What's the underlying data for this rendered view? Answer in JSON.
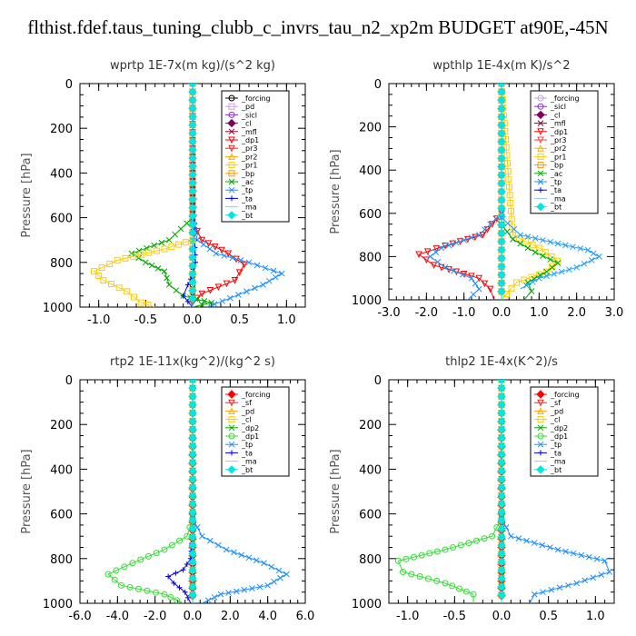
{
  "figure": {
    "title": "flthist.fdef.taus_tuning_clubb_c_invrs_tau_n2_xp2m  BUDGET at90E,-45N"
  },
  "chart_data": [
    {
      "type": "line",
      "title": "wprtp   1E-7x(m kg)/(s^2 kg)",
      "ylabel": "Pressure [hPa]",
      "xlim": [
        -1.2,
        1.2
      ],
      "ylim": [
        0,
        1000
      ],
      "y_inverted": true,
      "xticks": [
        -1.0,
        -0.5,
        0.0,
        0.5,
        1.0
      ],
      "xtick_labels": [
        "-1.0",
        "-0.5",
        "0.0",
        "0.5",
        "1.0"
      ],
      "yticks": [
        0,
        200,
        400,
        600,
        800,
        1000
      ],
      "legend_position": "top-right",
      "series": [
        {
          "name": "_forcing",
          "color": "#000000",
          "marker": "circle",
          "x": [
            0,
            0,
            0,
            0,
            0
          ],
          "y": [
            0,
            400,
            700,
            900,
            1000
          ]
        },
        {
          "name": "_pd",
          "color": "#c9a0dc",
          "marker": "square",
          "x": [
            0,
            0
          ],
          "y": [
            0,
            1000
          ]
        },
        {
          "name": "_sicl",
          "color": "#8a2be2",
          "marker": "circle",
          "x": [
            0,
            0
          ],
          "y": [
            0,
            1000
          ]
        },
        {
          "name": "_cl",
          "color": "#800060",
          "marker": "diamond",
          "x": [
            0,
            0
          ],
          "y": [
            0,
            1000
          ]
        },
        {
          "name": "_mfl",
          "color": "#990033",
          "marker": "cross",
          "x": [
            0,
            0
          ],
          "y": [
            0,
            1000
          ]
        },
        {
          "name": "_dp1",
          "color": "#ff0000",
          "marker": "triangle-down",
          "x": [
            0,
            0,
            0.1,
            0.38,
            0.55,
            0.45,
            0.1,
            0,
            0
          ],
          "y": [
            0,
            620,
            700,
            760,
            810,
            880,
            940,
            980,
            1000
          ]
        },
        {
          "name": "_pr3",
          "color": "#ff2020",
          "marker": "triangle-down",
          "x": [
            0,
            0
          ],
          "y": [
            0,
            1000
          ]
        },
        {
          "name": "_pr2",
          "color": "#ffaa00",
          "marker": "triangle",
          "x": [
            0,
            0
          ],
          "y": [
            0,
            1000
          ]
        },
        {
          "name": "_pr1",
          "color": "#ffcc00",
          "marker": "square",
          "x": [
            0,
            0
          ],
          "y": [
            0,
            1000
          ]
        },
        {
          "name": "_bp",
          "color": "#ff9900",
          "marker": "square",
          "x": [
            0,
            0
          ],
          "y": [
            0,
            1000
          ]
        },
        {
          "name": "_ac",
          "color": "#00aa00",
          "marker": "cross",
          "x": [
            0,
            -0.25,
            -0.65,
            -0.5,
            -0.3,
            -0.25,
            -0.1,
            0.2,
            0
          ],
          "y": [
            600,
            700,
            760,
            800,
            840,
            900,
            950,
            980,
            1000
          ]
        },
        {
          "name": "_tp",
          "color": "#1e90ff",
          "marker": "cross",
          "x": [
            0,
            0.05,
            0.25,
            0.6,
            0.95,
            0.75,
            0.4,
            0.15
          ],
          "y": [
            600,
            700,
            760,
            800,
            850,
            900,
            960,
            1000
          ]
        },
        {
          "name": "_ta",
          "color": "#0000ff",
          "marker": "plus",
          "x": [
            0,
            0.02,
            0.03,
            0.01,
            -0.05,
            -0.1,
            0
          ],
          "y": [
            0,
            700,
            800,
            850,
            900,
            950,
            1000
          ]
        },
        {
          "name": "_ma",
          "color": "#87cefa",
          "marker": "line",
          "x": [
            0,
            0
          ],
          "y": [
            0,
            1000
          ]
        },
        {
          "name": "_bt",
          "color": "#00e5e5",
          "marker": "diamond",
          "x": [
            0,
            0
          ],
          "y": [
            0,
            1000
          ]
        },
        {
          "name": "_sf",
          "color": "#ffcc00",
          "marker": "square",
          "x": [
            0,
            -0.3,
            -0.8,
            -1.05,
            -0.95,
            -0.7,
            -0.55,
            -0.4
          ],
          "y": [
            700,
            740,
            790,
            840,
            880,
            930,
            980,
            1000
          ]
        }
      ]
    },
    {
      "type": "line",
      "title": "wpthlp   1E-4x(m K)/s^2",
      "ylabel": "Pressure [hPa]",
      "xlim": [
        -3.0,
        3.0
      ],
      "ylim": [
        0,
        1000
      ],
      "y_inverted": true,
      "xticks": [
        -3.0,
        -2.0,
        -1.0,
        0.0,
        1.0,
        2.0,
        3.0
      ],
      "xtick_labels": [
        "-3.0",
        "-2.0",
        "-1.0",
        "0.0",
        "1.0",
        "2.0",
        "3.0"
      ],
      "yticks": [
        0,
        200,
        400,
        600,
        800,
        1000
      ],
      "legend_position": "top-right",
      "series": [
        {
          "name": "_forcing",
          "color": "#c9a0dc",
          "marker": "circle",
          "x": [
            0,
            0
          ],
          "y": [
            0,
            1000
          ]
        },
        {
          "name": "_sicl",
          "color": "#8a2be2",
          "marker": "circle",
          "x": [
            0,
            0
          ],
          "y": [
            0,
            1000
          ]
        },
        {
          "name": "_cl",
          "color": "#800060",
          "marker": "diamond",
          "x": [
            0,
            0
          ],
          "y": [
            0,
            1000
          ]
        },
        {
          "name": "_mfl",
          "color": "#990033",
          "marker": "cross",
          "x": [
            0,
            0
          ],
          "y": [
            0,
            1000
          ]
        },
        {
          "name": "_dp1",
          "color": "#ff0000",
          "marker": "triangle-down",
          "x": [
            0,
            -0.5,
            -1.5,
            -2.2,
            -1.8,
            -0.6,
            -0.3,
            -0.2
          ],
          "y": [
            600,
            700,
            750,
            790,
            840,
            900,
            950,
            1000
          ]
        },
        {
          "name": "_pr3",
          "color": "#ff4040",
          "marker": "triangle-down",
          "x": [
            0,
            0
          ],
          "y": [
            0,
            1000
          ]
        },
        {
          "name": "_pr2",
          "color": "#ffaa00",
          "marker": "triangle",
          "x": [
            0,
            0
          ],
          "y": [
            0,
            1000
          ]
        },
        {
          "name": "_pr1",
          "color": "#ffcc00",
          "marker": "square",
          "x": [
            0,
            0.3,
            1.0,
            1.5,
            1.2,
            0.4,
            0
          ],
          "y": [
            0,
            700,
            760,
            820,
            870,
            920,
            1000
          ]
        },
        {
          "name": "_bp",
          "color": "#ff9900",
          "marker": "square",
          "x": [
            0,
            0
          ],
          "y": [
            0,
            1000
          ]
        },
        {
          "name": "_ac",
          "color": "#00aa00",
          "marker": "cross",
          "x": [
            0,
            0.3,
            0.9,
            1.5,
            1.2,
            0.7,
            0.8,
            0.6
          ],
          "y": [
            650,
            720,
            780,
            830,
            870,
            920,
            960,
            1000
          ]
        },
        {
          "name": "_tp",
          "color": "#1e90ff",
          "marker": "cross",
          "x": [
            0,
            -0.6,
            -1.6,
            -1.9,
            -1.5,
            -0.8,
            -0.6,
            -0.9
          ],
          "y": [
            600,
            700,
            760,
            800,
            850,
            900,
            950,
            1000
          ]
        },
        {
          "name": "_ta",
          "color": "#0000ff",
          "marker": "plus",
          "x": [
            0,
            0
          ],
          "y": [
            0,
            1000
          ]
        },
        {
          "name": "_ma",
          "color": "#87cefa",
          "marker": "line",
          "x": [
            0,
            0
          ],
          "y": [
            0,
            1000
          ]
        },
        {
          "name": "_bt",
          "color": "#00e5e5",
          "marker": "diamond",
          "x": [
            0,
            0
          ],
          "y": [
            0,
            1000
          ]
        },
        {
          "name": "_sf",
          "color": "#1ea0ff",
          "marker": "cross",
          "x": [
            0,
            0.5,
            1.5,
            2.3,
            2.6,
            2.0,
            1.0,
            0.5
          ],
          "y": [
            620,
            700,
            740,
            770,
            800,
            850,
            900,
            950
          ]
        }
      ]
    },
    {
      "type": "line",
      "title": "rtp2   1E-11x(kg^2)/(kg^2 s)",
      "ylabel": "Pressure [hPa]",
      "xlim": [
        -6.0,
        6.0
      ],
      "ylim": [
        0,
        1000
      ],
      "y_inverted": true,
      "xticks": [
        -6.0,
        -4.0,
        -2.0,
        0.0,
        2.0,
        4.0,
        6.0
      ],
      "xtick_labels": [
        "-6.0",
        "-4.0",
        "-2.0",
        "0.0",
        "2.0",
        "4.0",
        "6.0"
      ],
      "yticks": [
        0,
        200,
        400,
        600,
        800,
        1000
      ],
      "legend_position": "top-right",
      "series": [
        {
          "name": "_forcing",
          "color": "#ff0000",
          "marker": "diamond",
          "x": [
            0,
            0,
            0,
            0,
            0
          ],
          "y": [
            0,
            300,
            600,
            900,
            1000
          ]
        },
        {
          "name": "_sf",
          "color": "#ff2020",
          "marker": "triangle-down",
          "x": [
            0,
            0
          ],
          "y": [
            0,
            1000
          ]
        },
        {
          "name": "_pd",
          "color": "#ffaa00",
          "marker": "triangle",
          "x": [
            0,
            0
          ],
          "y": [
            0,
            1000
          ]
        },
        {
          "name": "_cl",
          "color": "#ffcc00",
          "marker": "square",
          "x": [
            0,
            0
          ],
          "y": [
            0,
            1000
          ]
        },
        {
          "name": "_dp2",
          "color": "#00aa00",
          "marker": "cross",
          "x": [
            0,
            0
          ],
          "y": [
            0,
            1000
          ]
        },
        {
          "name": "_dp1",
          "color": "#33dd33",
          "marker": "circle",
          "x": [
            0,
            -0.3,
            -1.5,
            -3.2,
            -4.5,
            -3.8,
            -1.5,
            -0.5
          ],
          "y": [
            620,
            700,
            760,
            820,
            870,
            920,
            960,
            1000
          ]
        },
        {
          "name": "_tp",
          "color": "#1e90ff",
          "marker": "cross",
          "x": [
            0,
            0.5,
            1.8,
            3.8,
            5.0,
            4.0,
            1.5,
            0.5
          ],
          "y": [
            620,
            700,
            760,
            820,
            870,
            920,
            960,
            1000
          ]
        },
        {
          "name": "_ta",
          "color": "#0000ff",
          "marker": "plus",
          "x": [
            0,
            -0.1,
            -0.5,
            -1.3,
            -1.0,
            -0.4,
            -0.1
          ],
          "y": [
            700,
            800,
            850,
            880,
            910,
            950,
            1000
          ]
        },
        {
          "name": "_ma",
          "color": "#87cefa",
          "marker": "line",
          "x": [
            0,
            0
          ],
          "y": [
            0,
            1000
          ]
        },
        {
          "name": "_bt",
          "color": "#00e5e5",
          "marker": "diamond",
          "x": [
            0,
            0
          ],
          "y": [
            0,
            1000
          ]
        }
      ]
    },
    {
      "type": "line",
      "title": "thlp2   1E-4x(K^2)/s",
      "ylabel": "Pressure [hPa]",
      "xlim": [
        -1.2,
        1.2
      ],
      "ylim": [
        0,
        1000
      ],
      "y_inverted": true,
      "xticks": [
        -1.0,
        -0.5,
        0.0,
        0.5,
        1.0
      ],
      "xtick_labels": [
        "-1.0",
        "-0.5",
        "0.0",
        "0.5",
        "1.0"
      ],
      "yticks": [
        0,
        200,
        400,
        600,
        800,
        1000
      ],
      "legend_position": "top-right",
      "series": [
        {
          "name": "_forcing",
          "color": "#ff0000",
          "marker": "diamond",
          "x": [
            0,
            0,
            0,
            0,
            0
          ],
          "y": [
            0,
            300,
            600,
            900,
            1000
          ]
        },
        {
          "name": "_sf",
          "color": "#ff2020",
          "marker": "triangle-down",
          "x": [
            0,
            0
          ],
          "y": [
            0,
            1000
          ]
        },
        {
          "name": "_pd",
          "color": "#ffaa00",
          "marker": "triangle",
          "x": [
            0,
            0
          ],
          "y": [
            0,
            1000
          ]
        },
        {
          "name": "_cl",
          "color": "#ffcc00",
          "marker": "square",
          "x": [
            0,
            0
          ],
          "y": [
            0,
            1000
          ]
        },
        {
          "name": "_dp2",
          "color": "#00aa00",
          "marker": "cross",
          "x": [
            0,
            0
          ],
          "y": [
            0,
            1000
          ]
        },
        {
          "name": "_dp1",
          "color": "#33dd33",
          "marker": "circle",
          "x": [
            0,
            -0.1,
            -0.6,
            -1.1,
            -1.05,
            -0.6,
            -0.3,
            -0.3
          ],
          "y": [
            620,
            700,
            760,
            810,
            860,
            910,
            960,
            1000
          ]
        },
        {
          "name": "_tp",
          "color": "#1e90ff",
          "marker": "cross",
          "x": [
            0,
            0.1,
            0.6,
            1.1,
            1.15,
            0.8,
            0.35,
            0.3
          ],
          "y": [
            620,
            700,
            760,
            810,
            860,
            910,
            960,
            1000
          ]
        },
        {
          "name": "_ta",
          "color": "#0000ff",
          "marker": "plus",
          "x": [
            0,
            0
          ],
          "y": [
            0,
            1000
          ]
        },
        {
          "name": "_ma",
          "color": "#87cefa",
          "marker": "line",
          "x": [
            0,
            0
          ],
          "y": [
            0,
            1000
          ]
        },
        {
          "name": "_bt",
          "color": "#00e5e5",
          "marker": "diamond",
          "x": [
            0,
            0
          ],
          "y": [
            0,
            1000
          ]
        }
      ]
    }
  ]
}
